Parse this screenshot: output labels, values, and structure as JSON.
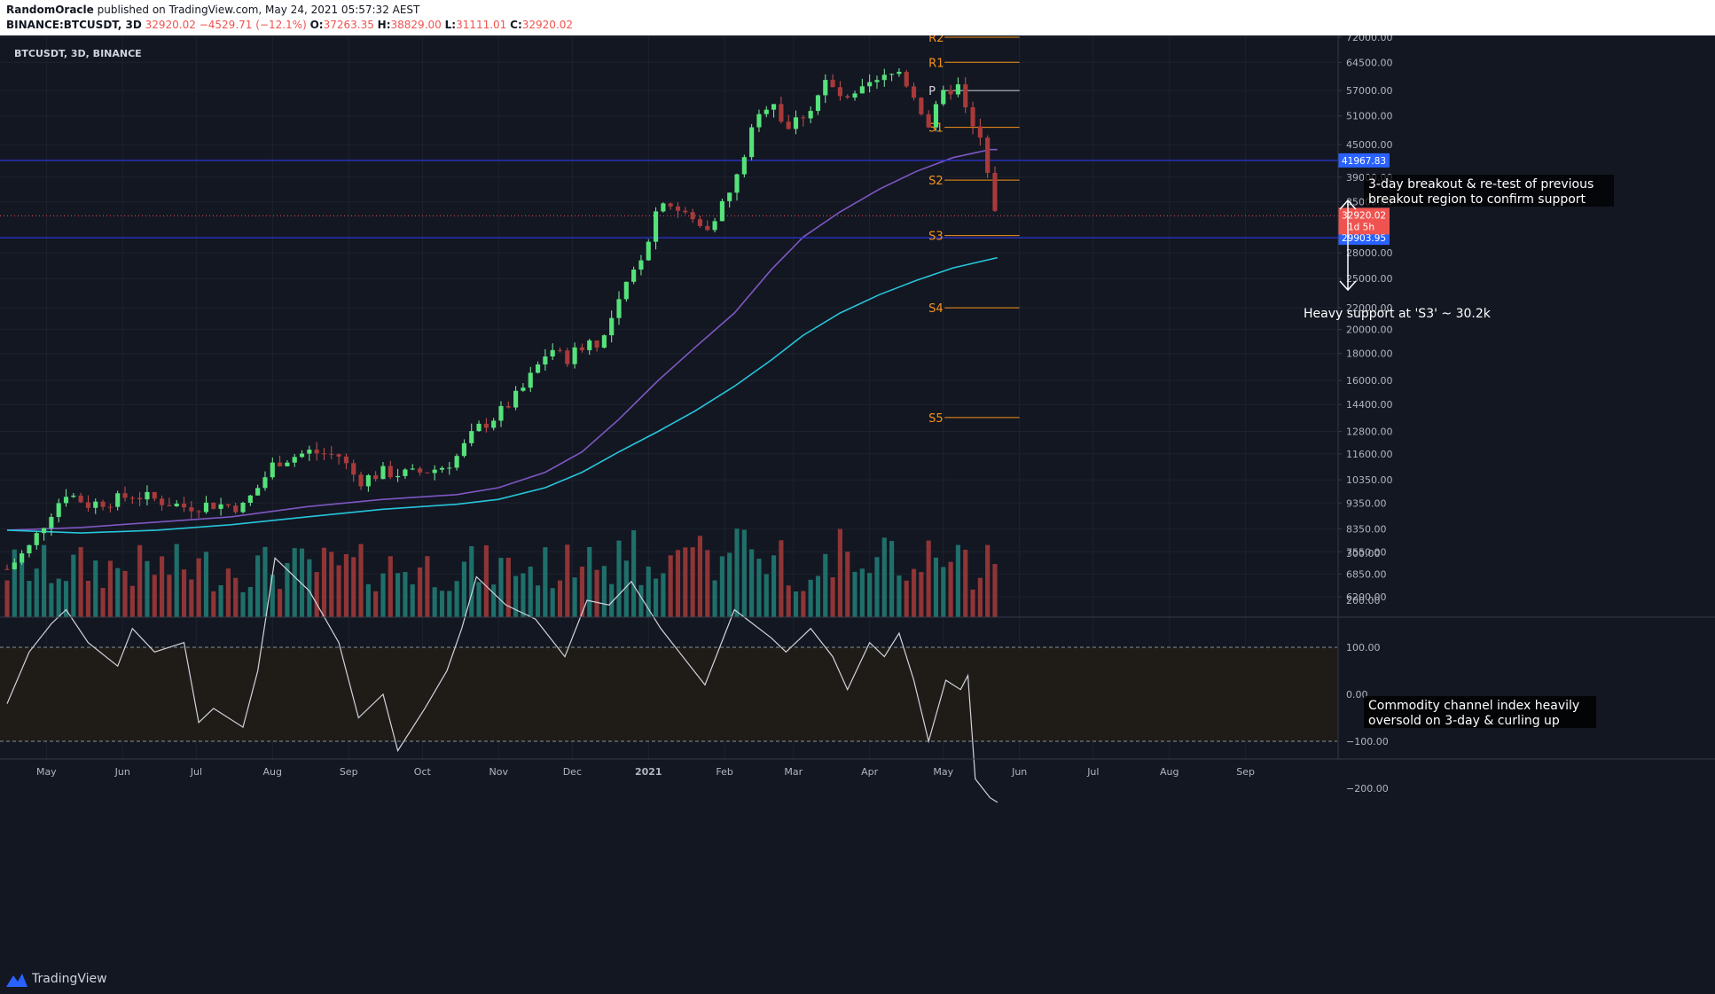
{
  "header": {
    "author": "RandomOracle",
    "published_text": "published on TradingView.com, May 24, 2021 05:57:32 AEST",
    "symbol_line": "BINANCE:BTCUSDT, 3D",
    "last": "32920.02",
    "change": "−4529.71 (−12.1%)",
    "o_label": "O:",
    "o": "37263.35",
    "h_label": "H:",
    "h": "38829.00",
    "l_label": "L:",
    "l": "31111.01",
    "c_label": "C:",
    "c": "32920.02"
  },
  "legend": "BTCUSDT, 3D, BINANCE",
  "footer": {
    "brand": "TradingView"
  },
  "colors": {
    "background": "#131722",
    "up": "#26a69a",
    "up_body": "#55e27a",
    "down": "#ef5350",
    "down_body": "#a83a3a",
    "vol_up": "#1f6f6a",
    "vol_down": "#8f3536",
    "ema_fast": "#7e57c2",
    "ema_slow": "#26c6da",
    "hline": "#2b35d8",
    "pivot": "#f7931a",
    "cci": "#d1d4dc",
    "band_fill": "#1f1c18"
  },
  "chart_data": {
    "type": "candlestick",
    "title": "BTCUSDT, 3D, BINANCE",
    "price_scale": "log",
    "y_ticks": [
      6200,
      6850,
      7550,
      8350,
      9350,
      10350,
      11600,
      12800,
      14400,
      16000,
      18000,
      20000,
      22000,
      25000,
      28000,
      35000,
      39000,
      45000,
      51000,
      57000,
      64500,
      72000
    ],
    "y_tick_labels": [
      "6200.00",
      "6850.00",
      "7550.00",
      "8350.00",
      "9350.00",
      "10350.00",
      "11600.00",
      "12800.00",
      "14400.00",
      "16000.00",
      "18000.00",
      "20000.00",
      "22000.00",
      "25000.00",
      "28000.00",
      "35000.00",
      "39000.00",
      "45000.00",
      "51000.00",
      "57000.00",
      "64500.00",
      "72000.00"
    ],
    "x_ticks": [
      {
        "date": "2020-05-01",
        "label": "May"
      },
      {
        "date": "2020-06-01",
        "label": "Jun"
      },
      {
        "date": "2020-07-01",
        "label": "Jul"
      },
      {
        "date": "2020-08-01",
        "label": "Aug"
      },
      {
        "date": "2020-09-01",
        "label": "Sep"
      },
      {
        "date": "2020-10-01",
        "label": "Oct"
      },
      {
        "date": "2020-11-01",
        "label": "Nov"
      },
      {
        "date": "2020-12-01",
        "label": "Dec"
      },
      {
        "date": "2021-01-01",
        "label": "2021"
      },
      {
        "date": "2021-02-01",
        "label": "Feb"
      },
      {
        "date": "2021-03-01",
        "label": "Mar"
      },
      {
        "date": "2021-04-01",
        "label": "Apr"
      },
      {
        "date": "2021-05-01",
        "label": "May"
      },
      {
        "date": "2021-06-01",
        "label": "Jun"
      },
      {
        "date": "2021-07-01",
        "label": "Jul"
      },
      {
        "date": "2021-08-01",
        "label": "Aug"
      },
      {
        "date": "2021-09-01",
        "label": "Sep"
      }
    ],
    "price_path": [
      [
        "2020-04-15",
        7000
      ],
      [
        "2020-04-24",
        7700
      ],
      [
        "2020-05-03",
        9000
      ],
      [
        "2020-05-09",
        9800
      ],
      [
        "2020-05-18",
        9300
      ],
      [
        "2020-05-30",
        9500
      ],
      [
        "2020-06-05",
        9700
      ],
      [
        "2020-06-14",
        9500
      ],
      [
        "2020-06-26",
        9200
      ],
      [
        "2020-07-08",
        9300
      ],
      [
        "2020-07-20",
        9200
      ],
      [
        "2020-07-26",
        10000
      ],
      [
        "2020-08-02",
        11200
      ],
      [
        "2020-08-16",
        11700
      ],
      [
        "2020-08-28",
        11500
      ],
      [
        "2020-09-05",
        10300
      ],
      [
        "2020-09-15",
        10700
      ],
      [
        "2020-09-26",
        10600
      ],
      [
        "2020-10-08",
        10900
      ],
      [
        "2020-10-14",
        11300
      ],
      [
        "2020-10-23",
        12900
      ],
      [
        "2020-11-01",
        13800
      ],
      [
        "2020-11-10",
        15200
      ],
      [
        "2020-11-22",
        18500
      ],
      [
        "2020-11-28",
        17500
      ],
      [
        "2020-12-07",
        19000
      ],
      [
        "2020-12-13",
        18900
      ],
      [
        "2020-12-22",
        23500
      ],
      [
        "2020-12-31",
        29000
      ],
      [
        "2021-01-06",
        36000
      ],
      [
        "2021-01-12",
        34000
      ],
      [
        "2021-01-24",
        31000
      ],
      [
        "2021-01-27",
        32500
      ],
      [
        "2021-02-05",
        37500
      ],
      [
        "2021-02-11",
        46500
      ],
      [
        "2021-02-20",
        56000
      ],
      [
        "2021-02-26",
        48000
      ],
      [
        "2021-03-08",
        53000
      ],
      [
        "2021-03-14",
        59000
      ],
      [
        "2021-03-23",
        54000
      ],
      [
        "2021-04-01",
        58000
      ],
      [
        "2021-04-13",
        62000
      ],
      [
        "2021-04-19",
        56000
      ],
      [
        "2021-04-25",
        49000
      ],
      [
        "2021-05-02",
        57000
      ],
      [
        "2021-05-08",
        58000
      ],
      [
        "2021-05-11",
        49500
      ],
      [
        "2021-05-16",
        46000
      ],
      [
        "2021-05-20",
        37000
      ],
      [
        "2021-05-23",
        32920
      ]
    ],
    "hlines": [
      {
        "price": 41967.83,
        "label": "41967.83"
      },
      {
        "price": 29903.95,
        "label": "29903.95"
      }
    ],
    "last_price_label": "32920.02",
    "countdown_label": "1d 5h",
    "pivots": [
      {
        "label": "R2",
        "price": 72000
      },
      {
        "label": "R1",
        "price": 64500
      },
      {
        "label": "P",
        "price": 57000
      },
      {
        "label": "S1",
        "price": 48500
      },
      {
        "label": "S2",
        "price": 38500
      },
      {
        "label": "S3",
        "price": 30200
      },
      {
        "label": "S4",
        "price": 22000
      },
      {
        "label": "S5",
        "price": 13600
      }
    ],
    "pivot_start": "2021-04-25",
    "pivot_end": "2021-06-01",
    "ema_fast": [
      [
        "2020-04-15",
        8300
      ],
      [
        "2020-05-15",
        8400
      ],
      [
        "2020-06-15",
        8600
      ],
      [
        "2020-07-15",
        8800
      ],
      [
        "2020-08-15",
        9200
      ],
      [
        "2020-09-15",
        9500
      ],
      [
        "2020-10-15",
        9700
      ],
      [
        "2020-11-01",
        10000
      ],
      [
        "2020-11-20",
        10700
      ],
      [
        "2020-12-05",
        11700
      ],
      [
        "2020-12-20",
        13500
      ],
      [
        "2021-01-05",
        16000
      ],
      [
        "2021-01-20",
        18500
      ],
      [
        "2021-02-05",
        21500
      ],
      [
        "2021-02-20",
        26000
      ],
      [
        "2021-03-05",
        30000
      ],
      [
        "2021-03-20",
        33500
      ],
      [
        "2021-04-05",
        37000
      ],
      [
        "2021-04-20",
        40000
      ],
      [
        "2021-05-05",
        42500
      ],
      [
        "2021-05-20",
        44000
      ],
      [
        "2021-05-23",
        44000
      ]
    ],
    "ema_slow": [
      [
        "2020-04-15",
        8300
      ],
      [
        "2020-05-15",
        8200
      ],
      [
        "2020-06-15",
        8300
      ],
      [
        "2020-07-15",
        8500
      ],
      [
        "2020-08-15",
        8800
      ],
      [
        "2020-09-15",
        9100
      ],
      [
        "2020-10-15",
        9300
      ],
      [
        "2020-11-01",
        9500
      ],
      [
        "2020-11-20",
        10000
      ],
      [
        "2020-12-05",
        10700
      ],
      [
        "2020-12-20",
        11700
      ],
      [
        "2021-01-05",
        12800
      ],
      [
        "2021-01-20",
        14000
      ],
      [
        "2021-02-05",
        15600
      ],
      [
        "2021-02-20",
        17500
      ],
      [
        "2021-03-05",
        19500
      ],
      [
        "2021-03-20",
        21500
      ],
      [
        "2021-04-05",
        23300
      ],
      [
        "2021-04-20",
        24800
      ],
      [
        "2021-05-05",
        26200
      ],
      [
        "2021-05-20",
        27200
      ],
      [
        "2021-05-23",
        27400
      ]
    ],
    "volume_ticks": [],
    "cci": {
      "y_ticks": [
        -200,
        -100,
        0,
        100,
        200,
        300
      ],
      "y_tick_labels": [
        "−200.00",
        "−100.00",
        "0.00",
        "100.00",
        "200.00",
        "300.00"
      ],
      "band": [
        -100,
        100
      ],
      "path": [
        [
          "2020-04-15",
          -20
        ],
        [
          "2020-04-24",
          90
        ],
        [
          "2020-05-03",
          150
        ],
        [
          "2020-05-09",
          180
        ],
        [
          "2020-05-18",
          110
        ],
        [
          "2020-05-30",
          60
        ],
        [
          "2020-06-05",
          140
        ],
        [
          "2020-06-14",
          90
        ],
        [
          "2020-06-26",
          110
        ],
        [
          "2020-07-02",
          -60
        ],
        [
          "2020-07-08",
          -30
        ],
        [
          "2020-07-20",
          -70
        ],
        [
          "2020-07-26",
          50
        ],
        [
          "2020-08-02",
          290
        ],
        [
          "2020-08-16",
          220
        ],
        [
          "2020-08-28",
          110
        ],
        [
          "2020-09-05",
          -50
        ],
        [
          "2020-09-15",
          0
        ],
        [
          "2020-09-21",
          -120
        ],
        [
          "2020-10-02",
          -30
        ],
        [
          "2020-10-11",
          50
        ],
        [
          "2020-10-17",
          140
        ],
        [
          "2020-10-23",
          250
        ],
        [
          "2020-11-04",
          190
        ],
        [
          "2020-11-16",
          160
        ],
        [
          "2020-11-28",
          80
        ],
        [
          "2020-12-07",
          200
        ],
        [
          "2020-12-16",
          190
        ],
        [
          "2020-12-25",
          240
        ],
        [
          "2021-01-06",
          140
        ],
        [
          "2021-01-24",
          20
        ],
        [
          "2021-01-30",
          100
        ],
        [
          "2021-02-05",
          180
        ],
        [
          "2021-02-20",
          120
        ],
        [
          "2021-02-26",
          90
        ],
        [
          "2021-03-08",
          140
        ],
        [
          "2021-03-17",
          80
        ],
        [
          "2021-03-23",
          10
        ],
        [
          "2021-04-01",
          110
        ],
        [
          "2021-04-07",
          80
        ],
        [
          "2021-04-13",
          130
        ],
        [
          "2021-04-19",
          30
        ],
        [
          "2021-04-25",
          -100
        ],
        [
          "2021-05-02",
          30
        ],
        [
          "2021-05-08",
          10
        ],
        [
          "2021-05-11",
          40
        ],
        [
          "2021-05-14",
          -180
        ],
        [
          "2021-05-20",
          -220
        ],
        [
          "2021-05-23",
          -230
        ]
      ]
    }
  },
  "annotations": {
    "breakout_line1": "3-day breakout & re-test of previous",
    "breakout_line2": "breakout region to confirm support",
    "support": "Heavy support at 'S3' ~ 30.2k",
    "cci_line1": "Commodity channel index heavily",
    "cci_line2": "oversold on 3-day & curling up"
  }
}
